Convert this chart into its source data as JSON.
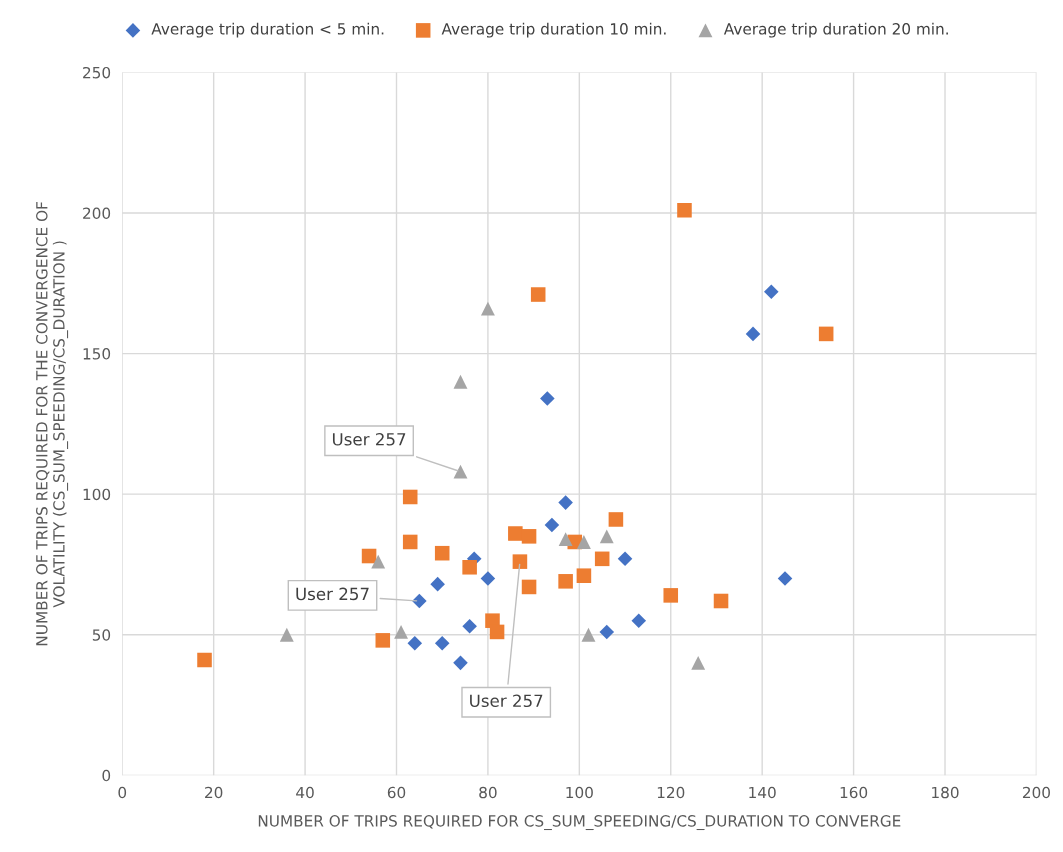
{
  "chart_data": {
    "type": "scatter",
    "xlabel": "NUMBER OF TRIPS REQUIRED FOR CS_SUM_SPEEDING/CS_DURATION TO CONVERGE",
    "ylabel": "NUMBER OF TRIPS REQUIRED FOR THE CONVERGENCE OF\nVOLATILITY (CS_SUM_SPEEDING/CS_DURATION )",
    "xlim": [
      0,
      200
    ],
    "xticks": [
      0,
      20,
      40,
      60,
      80,
      100,
      120,
      140,
      160,
      180,
      200
    ],
    "ylim": [
      0,
      250
    ],
    "yticks": [
      0,
      50,
      100,
      150,
      200,
      250
    ],
    "grid": true,
    "legend": "top",
    "series": [
      {
        "name": "Average trip duration < 5 min.",
        "color": "#4472c4",
        "marker": "diamond",
        "x": [
          64,
          70,
          74,
          76,
          65,
          69,
          77,
          80,
          93,
          94,
          97,
          106,
          110,
          113,
          138,
          142,
          145
        ],
        "values": [
          47,
          47,
          40,
          53,
          62,
          68,
          77,
          70,
          134,
          89,
          97,
          51,
          77,
          55,
          157,
          172,
          70
        ]
      },
      {
        "name": "Average trip duration 10 min.",
        "color": "#ed7d31",
        "marker": "square",
        "x": [
          18,
          54,
          57,
          63,
          63,
          70,
          76,
          81,
          82,
          86,
          89,
          87,
          89,
          91,
          97,
          99,
          101,
          105,
          108,
          120,
          123,
          131,
          154
        ],
        "values": [
          41,
          78,
          48,
          99,
          83,
          79,
          74,
          55,
          51,
          86,
          85,
          76,
          67,
          171,
          69,
          83,
          71,
          77,
          91,
          64,
          201,
          62,
          157
        ]
      },
      {
        "name": "Average trip duration 20 min.",
        "color": "#a5a5a5",
        "marker": "triangle",
        "x": [
          36,
          56,
          61,
          74,
          74,
          80,
          97,
          101,
          102,
          106,
          126
        ],
        "values": [
          50,
          76,
          51,
          140,
          108,
          166,
          84,
          83,
          50,
          85,
          40
        ]
      }
    ],
    "annotations": [
      {
        "text": "User 257",
        "x": 74,
        "y": 108
      },
      {
        "text": "User 257",
        "x": 65,
        "y": 62
      },
      {
        "text": "User 257",
        "x": 87,
        "y": 76
      }
    ]
  }
}
